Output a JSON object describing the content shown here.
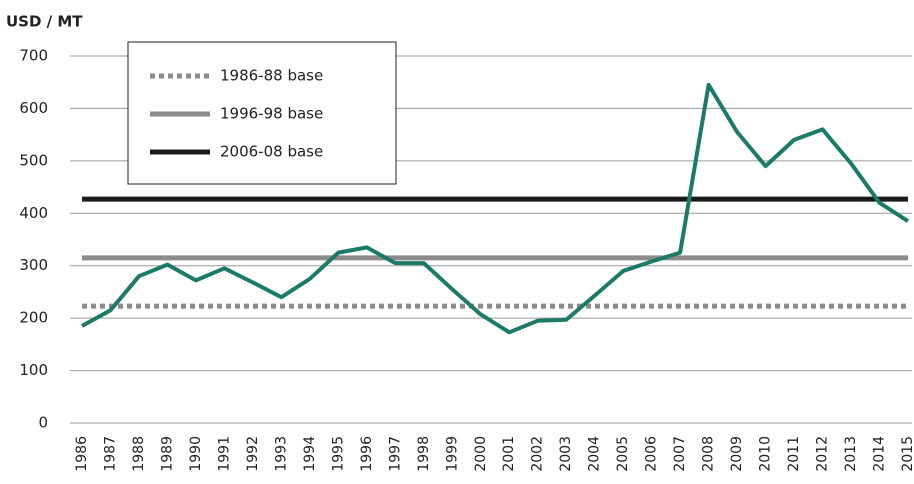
{
  "chart_data": {
    "type": "line",
    "y_label": "USD / MT",
    "categories": [
      "1986",
      "1987",
      "1988",
      "1989",
      "1990",
      "1991",
      "1992",
      "1993",
      "1994",
      "1995",
      "1996",
      "1997",
      "1998",
      "1999",
      "2000",
      "2001",
      "2002",
      "2003",
      "2004",
      "2005",
      "2006",
      "2007",
      "2008",
      "2009",
      "2010",
      "2011",
      "2012",
      "2013",
      "2014",
      "2015"
    ],
    "series": [
      {
        "color": "#1b7a68",
        "values": [
          185,
          215,
          280,
          302,
          272,
          295,
          268,
          240,
          275,
          325,
          335,
          305,
          305,
          255,
          207,
          173,
          195,
          197,
          243,
          290,
          308,
          325,
          645,
          555,
          490,
          540,
          560,
          495,
          420,
          385
        ]
      }
    ],
    "reference_lines": [
      {
        "name": "1986-88 base",
        "value": 223,
        "color": "#8c8c8c",
        "dash": "dotted"
      },
      {
        "name": "1996-98 base",
        "value": 315,
        "color": "#8c8c8c",
        "dash": "solid"
      },
      {
        "name": "2006-08 base",
        "value": 427,
        "color": "#1a1a1a",
        "dash": "solid"
      }
    ],
    "ylim": [
      0,
      700
    ],
    "yticks": [
      0,
      100,
      200,
      300,
      400,
      500,
      600,
      700
    ],
    "grid": true
  }
}
